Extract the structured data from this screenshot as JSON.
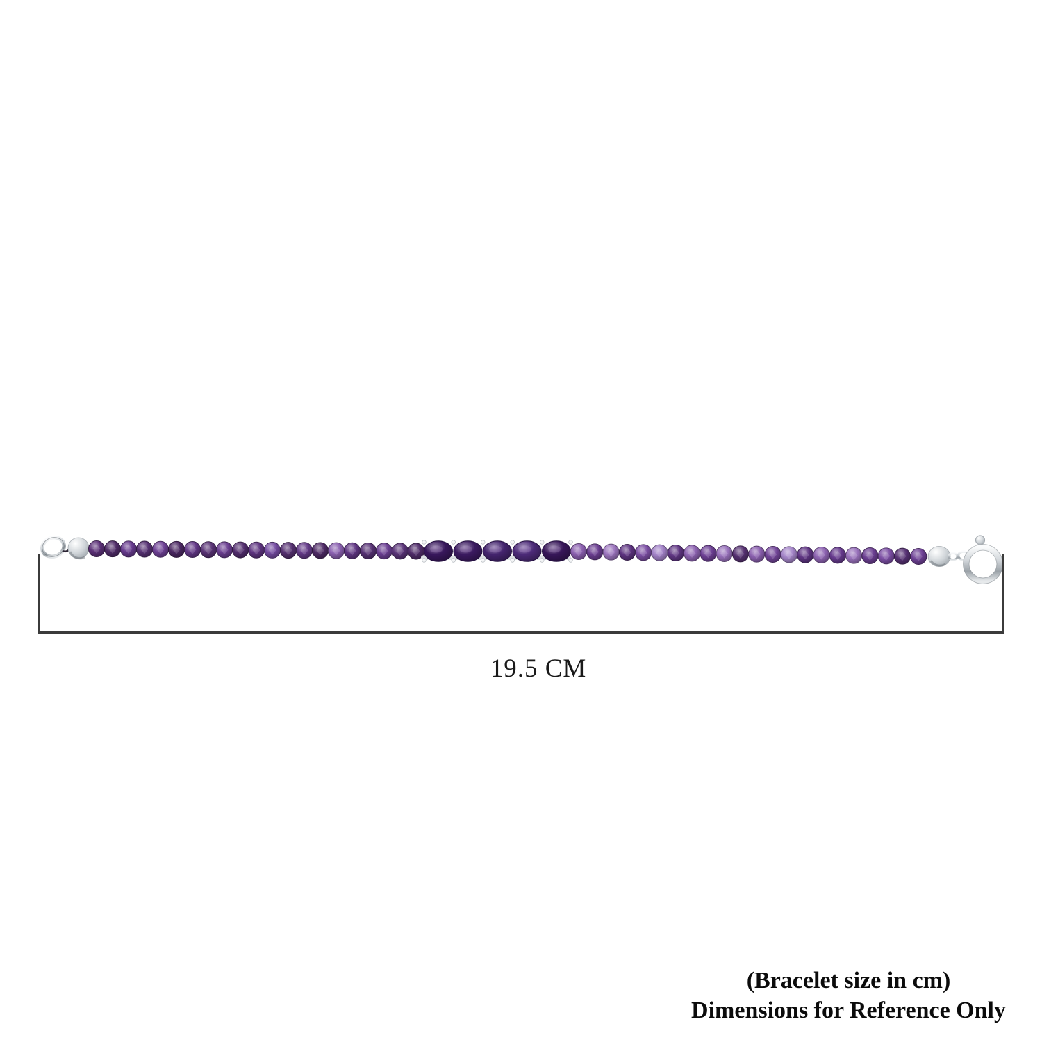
{
  "page": {
    "background": "#ffffff"
  },
  "product_image": {
    "alt": "amethyst-bead-bracelet-with-silver-spring-ring-clasp",
    "silver_colors": {
      "light": "#fafbfc",
      "mid": "#d0d5d9",
      "dark": "#9aa1a7"
    },
    "thread_color": "#2a2333",
    "left_clasp": "jump-ring",
    "right_clasp": "spring-ring",
    "left_beads": [
      "#5b3077",
      "#4e2a66",
      "#663a8d",
      "#563173",
      "#6d4094",
      "#4a2761",
      "#613685",
      "#583274",
      "#6a3d90",
      "#512c6c",
      "#5e3480",
      "#734aa0",
      "#553070",
      "#643a88",
      "#4d2964",
      "#8a60b0",
      "#5f3582",
      "#563173",
      "#6b3e92",
      "#593377",
      "#4f2b68"
    ],
    "center_stones": [
      "#38175c",
      "#3b1a60",
      "#44246e",
      "#4c2a78",
      "#371659"
    ],
    "right_beads": [
      "#8a5fae",
      "#6a3d90",
      "#9b74bd",
      "#5d3380",
      "#7b4ea3",
      "#a181c6",
      "#5f3582",
      "#8d63b1",
      "#6d4094",
      "#9770ba",
      "#553070",
      "#8a5fae",
      "#714497",
      "#a485c8",
      "#5e3482",
      "#8d63b1",
      "#663a8d",
      "#9770ba",
      "#6a3d90",
      "#7b4ea3",
      "#563173",
      "#6d4094"
    ]
  },
  "measurement": {
    "label": "19.5 CM",
    "line_color": "#3b3b3b",
    "text_color": "#1a1a1a"
  },
  "note": {
    "line1": "(Bracelet size in cm)",
    "line2": "Dimensions for Reference Only",
    "text_color": "#0b0b0b"
  }
}
